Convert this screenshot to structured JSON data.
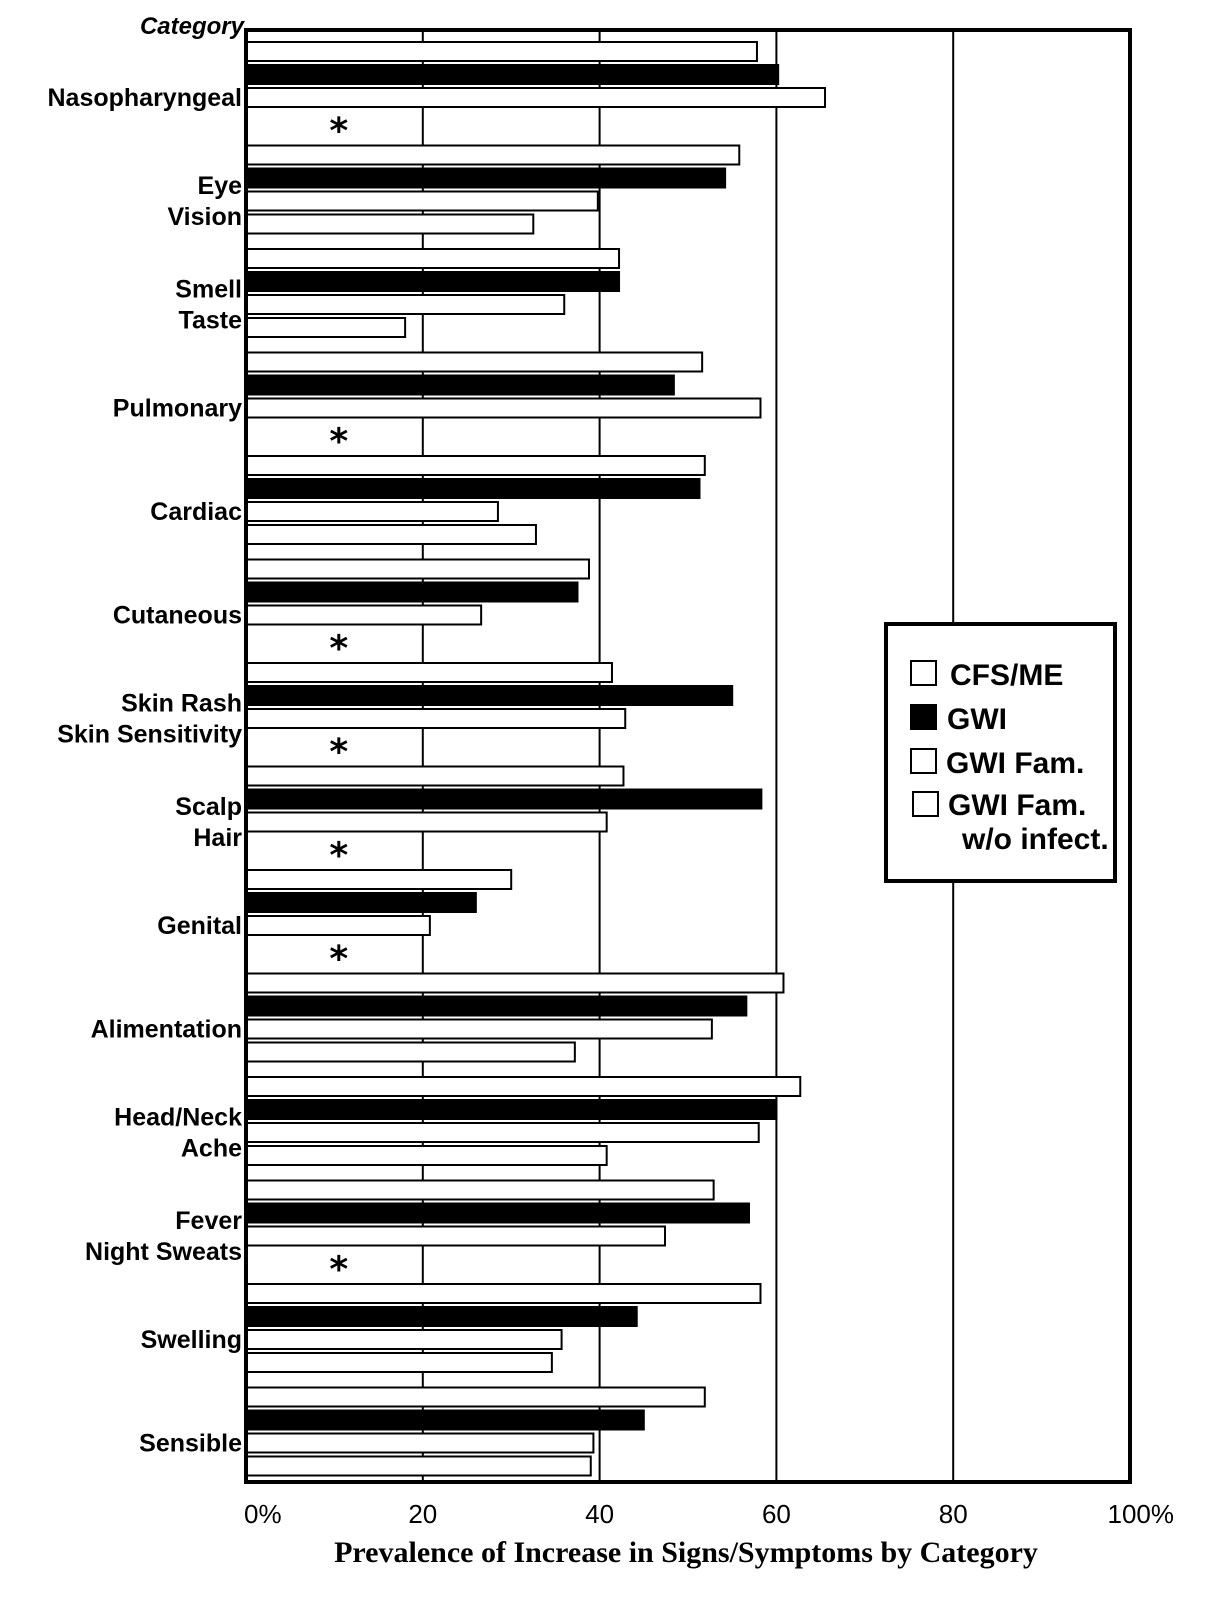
{
  "chart_data": {
    "type": "bar",
    "orientation": "horizontal",
    "category_header": "Category",
    "xlabel": "Prevalence of Increase in Signs/Symptoms by Category",
    "xlim": [
      0,
      100
    ],
    "xticks": [
      "0%",
      "20",
      "40",
      "60",
      "80",
      "100%"
    ],
    "grid": "vertical lines at 20, 40, 60, 80",
    "legend_position": "right-middle",
    "series": [
      {
        "name": "CFS/ME",
        "fill": "#ffffff"
      },
      {
        "name": "GWI",
        "fill": "#000000"
      },
      {
        "name": "GWI Fam.",
        "fill": "#ffffff"
      },
      {
        "name": "GWI Fam. w/o infect.",
        "fill": "#ffffff"
      }
    ],
    "categories": [
      {
        "label": [
          "Nasopharyngeal"
        ],
        "values": [
          57.8,
          60.2,
          65.5,
          null
        ],
        "star": true
      },
      {
        "label": [
          "Eye",
          "Vision"
        ],
        "values": [
          55.8,
          54.2,
          39.8,
          32.5
        ],
        "star": false
      },
      {
        "label": [
          "Smell",
          "Taste"
        ],
        "values": [
          42.2,
          42.2,
          36.0,
          18.0
        ],
        "star": false
      },
      {
        "label": [
          "Pulmonary"
        ],
        "values": [
          51.6,
          48.4,
          58.2,
          null
        ],
        "star": true
      },
      {
        "label": [
          "Cardiac"
        ],
        "values": [
          51.9,
          51.3,
          28.5,
          32.8
        ],
        "star": false
      },
      {
        "label": [
          "Cutaneous"
        ],
        "values": [
          38.8,
          37.5,
          26.6,
          null
        ],
        "star": true
      },
      {
        "label": [
          "Skin Rash",
          "Skin Sensitivity"
        ],
        "values": [
          41.4,
          55.0,
          42.9,
          null
        ],
        "star": true
      },
      {
        "label": [
          "Scalp",
          "Hair"
        ],
        "values": [
          42.7,
          58.3,
          40.8,
          null
        ],
        "star": true
      },
      {
        "label": [
          "Genital"
        ],
        "values": [
          30.0,
          26.0,
          20.8,
          null
        ],
        "star": true
      },
      {
        "label": [
          "Alimentation"
        ],
        "values": [
          60.8,
          56.6,
          52.7,
          37.2
        ],
        "star": false
      },
      {
        "label": [
          "Head/Neck",
          "Ache"
        ],
        "values": [
          62.7,
          60.0,
          58.0,
          40.8
        ],
        "star": false
      },
      {
        "label": [
          "Fever",
          "Night Sweats"
        ],
        "values": [
          52.9,
          56.9,
          47.4,
          null
        ],
        "star": true
      },
      {
        "label": [
          "Swelling"
        ],
        "values": [
          58.2,
          44.2,
          35.7,
          34.6
        ],
        "star": false
      },
      {
        "label": [
          "Sensible"
        ],
        "values": [
          51.9,
          45.0,
          39.3,
          39.0
        ],
        "star": false
      }
    ],
    "star_symbol": "*",
    "legend": [
      "CFS/ME",
      "GWI",
      "GWI Fam.",
      "GWI Fam.",
      "w/o infect."
    ]
  }
}
